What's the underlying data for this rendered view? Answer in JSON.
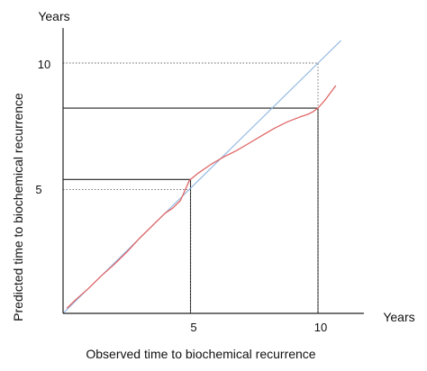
{
  "chart_data": {
    "type": "line",
    "title": "",
    "xlabel": "Observed time to biochemical recurrence",
    "ylabel": "Predicted time to biochemical recurrence",
    "x_unit": "Years",
    "y_unit": "Years",
    "xlim": [
      0,
      11.8
    ],
    "ylim": [
      0,
      11.4
    ],
    "x_ticks": [
      5,
      10
    ],
    "y_ticks": [
      5,
      10
    ],
    "x_tick_labels": [
      "5",
      "10"
    ],
    "y_tick_labels": [
      "5",
      "10"
    ],
    "grid": false,
    "legend": "none",
    "series": [
      {
        "kind": "identity-line",
        "color": "#8db4e2",
        "x": [
          0,
          10.9
        ],
        "y": [
          0,
          10.9
        ]
      },
      {
        "kind": "curve",
        "color": "#e06666",
        "x": [
          0.15,
          0.5,
          1.0,
          1.5,
          2.0,
          2.5,
          3.0,
          3.5,
          4.0,
          4.3,
          4.6,
          4.8,
          4.95,
          5.0,
          5.3,
          5.8,
          6.3,
          6.8,
          7.3,
          7.8,
          8.3,
          8.8,
          9.3,
          9.6,
          9.8,
          10.0,
          10.3,
          10.7
        ],
        "y": [
          0.2,
          0.55,
          1.0,
          1.5,
          1.95,
          2.45,
          3.0,
          3.5,
          4.0,
          4.2,
          4.5,
          4.95,
          5.3,
          5.35,
          5.6,
          5.95,
          6.25,
          6.5,
          6.8,
          7.1,
          7.4,
          7.65,
          7.85,
          7.95,
          8.05,
          8.2,
          8.55,
          9.1
        ]
      }
    ],
    "reference_lines": [
      {
        "style": "solid",
        "x": 5,
        "y": 5.35
      },
      {
        "style": "solid",
        "x": 10,
        "y": 8.2
      },
      {
        "style": "dotted",
        "x": 10,
        "y": 10
      },
      {
        "style": "dotted",
        "x": 5,
        "y": 4.95
      }
    ]
  }
}
